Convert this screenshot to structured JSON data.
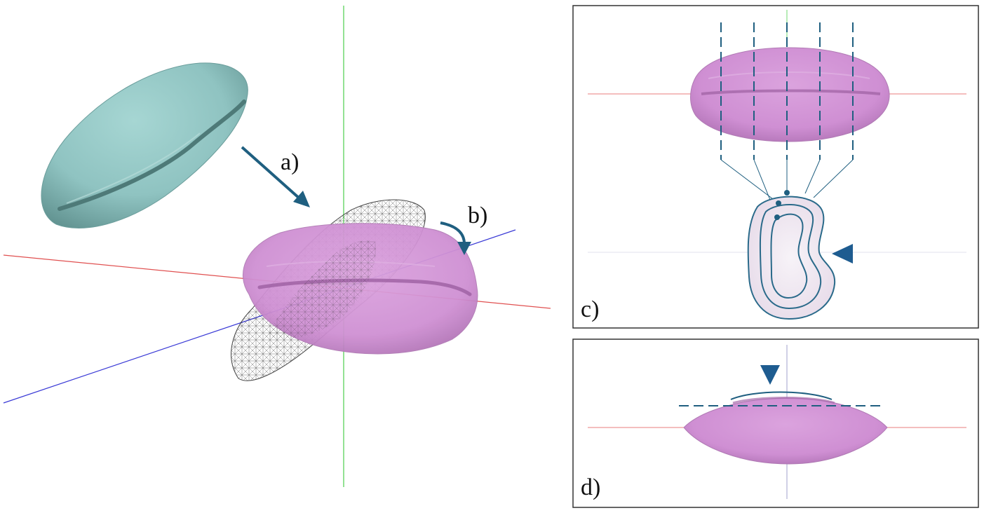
{
  "labels": {
    "a": "a)",
    "b": "b)",
    "c": "c)",
    "d": "d)"
  },
  "colors": {
    "seed_original": "#8fc3c1",
    "seed_aligned": "#cf8fd3",
    "arrow": "#1f5f80",
    "axis_x": "#e05050",
    "axis_y": "#4ccf4c",
    "axis_z": "#3a3ad6",
    "panel_border": "#333333",
    "marker": "#1e5c90",
    "contour": "#2a6a8a"
  },
  "icons": {
    "step_a": "arrow-icon",
    "step_b": "rotate-arrow-icon",
    "marker_c": "triangle-marker-icon",
    "marker_d": "triangle-marker-icon"
  }
}
